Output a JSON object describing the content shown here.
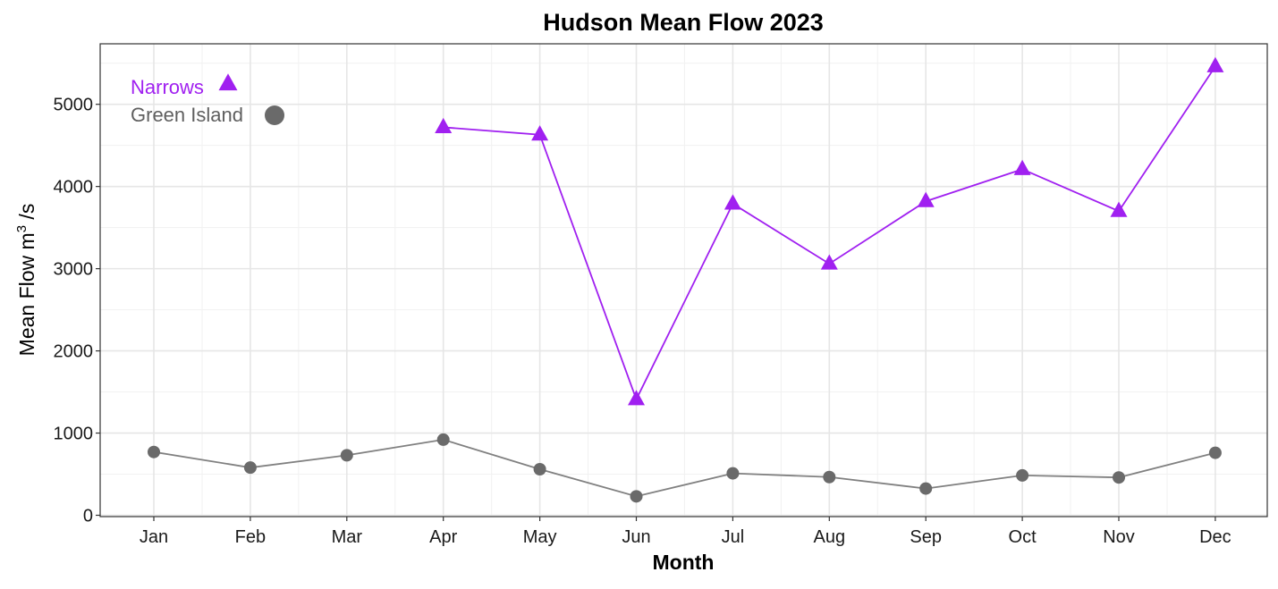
{
  "chart_data": {
    "type": "line",
    "title": "Hudson Mean Flow 2023",
    "xlabel": "Month",
    "ylabel": {
      "prefix": "Mean Flow m",
      "superscript": "3",
      "suffix": " /s"
    },
    "categories": [
      "Jan",
      "Feb",
      "Mar",
      "Apr",
      "May",
      "Jun",
      "Jul",
      "Aug",
      "Sep",
      "Oct",
      "Nov",
      "Dec"
    ],
    "ylim": [
      0,
      5650
    ],
    "yticks": [
      0,
      1000,
      2000,
      3000,
      4000,
      5000
    ],
    "grid": true,
    "legend": "top-left inside plot",
    "series": [
      {
        "name": "Narrows",
        "marker": "triangle",
        "color": "#A020F0",
        "values": [
          null,
          null,
          null,
          4720,
          4630,
          1410,
          3790,
          3060,
          3820,
          4210,
          3700,
          5460
        ]
      },
      {
        "name": "Green Island",
        "marker": "circle",
        "color": "#808080",
        "marker_color": "#6a6a6a",
        "legend_color": "#5f5f5f",
        "values": [
          770,
          580,
          730,
          920,
          560,
          230,
          510,
          465,
          325,
          485,
          460,
          760
        ]
      }
    ]
  }
}
